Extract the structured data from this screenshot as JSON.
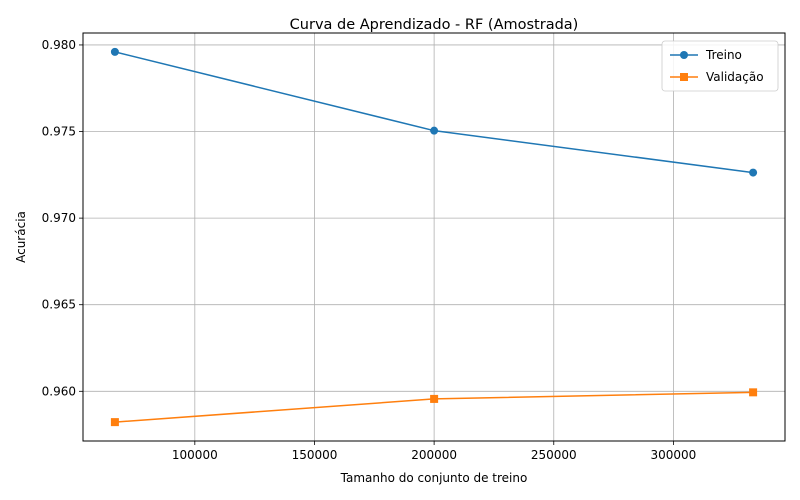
{
  "chart_data": {
    "type": "line",
    "title": "Curva de Aprendizado - RF (Amostrada)",
    "xlabel": "Tamanho do conjunto de treino",
    "ylabel": "Acurácia",
    "x": [
      66600,
      200000,
      333300
    ],
    "xlim": [
      53270,
      346630
    ],
    "ylim": [
      0.95713,
      0.98069
    ],
    "xticks": [
      100000,
      150000,
      200000,
      250000,
      300000
    ],
    "yticks": [
      0.96,
      0.965,
      0.97,
      0.975,
      0.98
    ],
    "grid": true,
    "legend_position": "top-right",
    "series": [
      {
        "name": "Treino",
        "values": [
          0.9796,
          0.97505,
          0.97263
        ],
        "color": "#1f77b4",
        "marker": "circle"
      },
      {
        "name": "Validação",
        "values": [
          0.95822,
          0.95956,
          0.95994
        ],
        "color": "#ff7f0e",
        "marker": "square"
      }
    ]
  }
}
